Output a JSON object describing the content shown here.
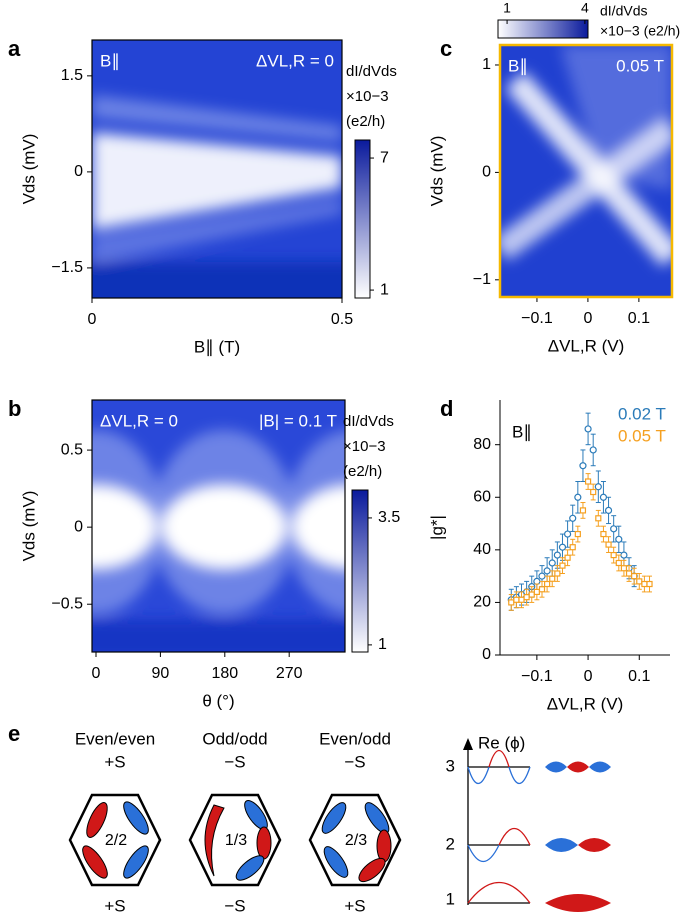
{
  "chart_data": [
    {
      "type": "heatmap",
      "label": "a",
      "annotations": [
        "B∥",
        "ΔVL,R = 0"
      ],
      "xlabel": "B∥ (T)",
      "ylabel": "Vds (mV)",
      "xlim": [
        0,
        0.5
      ],
      "xticks": [
        0,
        0.5
      ],
      "ylim": [
        -1.97,
        2.06
      ],
      "yticks": [
        {
          "value": -1.5,
          "label": "−1.5"
        },
        0,
        1.5
      ],
      "colormap": [
        "#ffffff",
        "#0a1a9c"
      ],
      "frame_color": "#000000",
      "colorbar": {
        "orientation": "vertical",
        "label": [
          "dI/dVds",
          "×10−3",
          "(e2/h)"
        ],
        "lim": [
          0.64,
          7.82
        ],
        "ticks": [
          1,
          7
        ]
      }
    },
    {
      "type": "heatmap",
      "label": "b",
      "annotations": [
        "ΔVL,R = 0",
        "|B| = 0.1 T"
      ],
      "xlabel": "θ (°)",
      "ylabel": "Vds (mV)",
      "xlim": [
        -5.6,
        348
      ],
      "xticks": [
        0,
        90,
        180,
        270
      ],
      "ylim": [
        -0.81,
        0.825
      ],
      "yticks": [
        {
          "value": -0.5,
          "label": "−0.5"
        },
        0,
        0.5
      ],
      "colormap": [
        "#ffffff",
        "#0a1a9c"
      ],
      "frame_color": "#000000",
      "colorbar": {
        "orientation": "vertical",
        "label": [
          "dI/dVds",
          "×10−3",
          "(e2/h)"
        ],
        "lim": [
          0.86,
          4.05
        ],
        "ticks": [
          1,
          3.5
        ]
      }
    },
    {
      "type": "heatmap",
      "label": "c",
      "annotations": [
        "B∥",
        "0.05 T"
      ],
      "xlabel": "ΔVL,R (V)",
      "ylabel": "Vds (mV)",
      "xlim": [
        -0.1725,
        0.165
      ],
      "xticks": [
        {
          "value": -0.1,
          "label": "−0.1"
        },
        0,
        0.1
      ],
      "ylim": [
        -1.16,
        1.186
      ],
      "yticks": [
        {
          "value": -1,
          "label": "−1"
        },
        0,
        1
      ],
      "colormap": [
        "#ffffff",
        "#0a1a9c"
      ],
      "frame_color": "#f5b800",
      "colorbar": {
        "orientation": "horizontal",
        "label": [
          "dI/dVds",
          "×10−3 (e2/h)"
        ],
        "lim": [
          0.65,
          4.12
        ],
        "ticks": [
          1,
          4
        ]
      }
    },
    {
      "type": "scatter",
      "label": "d",
      "annotations": [
        "B∥"
      ],
      "xlabel": "ΔVL,R (V)",
      "ylabel": "|g*|",
      "xlim": [
        -0.172,
        0.16
      ],
      "xticks": [
        {
          "value": -0.1,
          "label": "−0.1"
        },
        0,
        0.1
      ],
      "ylim": [
        0,
        97
      ],
      "yticks": [
        0,
        20,
        40,
        60,
        80
      ],
      "series": [
        {
          "name": "0.02 T",
          "color": "#2b7bb9",
          "marker": "circle",
          "x": [
            -0.15,
            -0.14,
            -0.13,
            -0.12,
            -0.11,
            -0.1,
            -0.09,
            -0.08,
            -0.07,
            -0.06,
            -0.05,
            -0.04,
            -0.03,
            -0.02,
            -0.01,
            0,
            0.01,
            0.02,
            0.03,
            0.04,
            0.05,
            0.06,
            0.07,
            0.08,
            0.09
          ],
          "values": [
            21,
            22,
            23,
            24,
            26,
            28,
            30,
            32,
            35,
            38,
            41,
            46,
            52,
            60,
            72,
            86,
            78,
            64,
            60,
            55,
            48,
            44,
            38,
            33,
            30
          ],
          "errors": [
            4,
            4,
            4,
            4,
            4,
            4,
            4,
            5,
            5,
            5,
            5,
            5,
            5,
            6,
            6,
            6,
            6,
            6,
            6,
            5,
            5,
            5,
            5,
            4,
            4
          ]
        },
        {
          "name": "0.05 T",
          "color": "#f5a020",
          "marker": "square",
          "x": [
            -0.15,
            -0.14,
            -0.13,
            -0.12,
            -0.11,
            -0.1,
            -0.09,
            -0.08,
            -0.07,
            -0.06,
            -0.05,
            -0.04,
            -0.03,
            -0.02,
            -0.01,
            0,
            0.01,
            0.02,
            0.03,
            0.04,
            0.05,
            0.06,
            0.07,
            0.08,
            0.09,
            0.1,
            0.11,
            0.12
          ],
          "values": [
            20,
            21,
            21,
            22,
            23,
            24,
            25,
            27,
            29,
            31,
            34,
            37,
            41,
            46,
            55,
            66,
            62,
            52,
            46,
            42,
            38,
            35,
            33,
            31,
            30,
            28,
            27,
            27
          ],
          "errors": [
            3,
            3,
            3,
            3,
            3,
            3,
            3,
            3,
            3,
            3,
            3,
            3,
            3,
            3,
            3,
            3,
            3,
            3,
            3,
            3,
            3,
            3,
            3,
            3,
            3,
            3,
            3,
            3
          ]
        }
      ]
    }
  ],
  "diagram": {
    "label": "e",
    "columns": [
      {
        "title": "Even/even",
        "top": "+S",
        "center": "2/2",
        "bottom": "+S"
      },
      {
        "title": "Odd/odd",
        "top": "−S",
        "center": "1/3",
        "bottom": "−S"
      },
      {
        "title": "Even/odd",
        "top": "−S",
        "center": "2/3",
        "bottom": "+S"
      }
    ],
    "wavefunctions": {
      "axis_label": "Re (ϕ)",
      "levels": [
        "3",
        "2",
        "1"
      ]
    }
  }
}
